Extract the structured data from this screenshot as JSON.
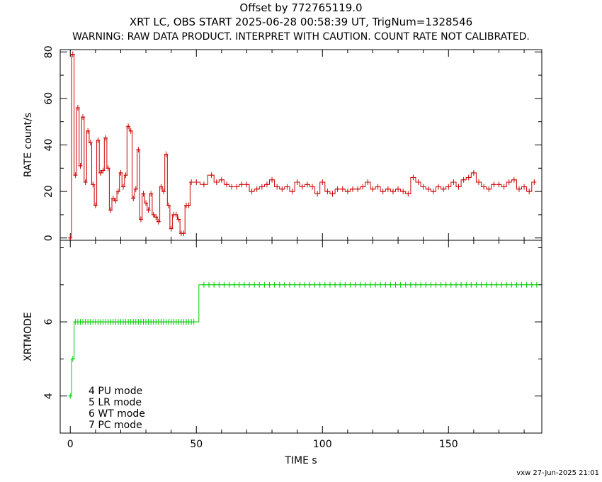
{
  "titles": {
    "line1": "Offset by 772765119.0",
    "line2": "XRT LC, OBS START 2025-06-28 00:58:39 UT, TrigNum=1328546",
    "line3": "WARNING: RAW DATA PRODUCT. INTERPRET WITH CAUTION. COUNT RATE NOT CALIBRATED."
  },
  "footer": "vxw 27-Jun-2025 21:01",
  "colors": {
    "rate": "#cc0000",
    "mode": "#00cc00",
    "axes": "#000000"
  },
  "chart_data": [
    {
      "type": "line",
      "ylabel": "RATE  count/s",
      "xlim": [
        -4,
        187
      ],
      "ylim": [
        -1,
        81
      ],
      "yticks": [
        0,
        20,
        40,
        60,
        80
      ],
      "yticklabels": [
        "0",
        "20",
        "40",
        "60",
        "80"
      ],
      "series": [
        {
          "color": "#cc0000",
          "x": [
            0,
            1,
            2,
            3,
            4,
            5,
            6,
            7,
            8,
            9,
            10,
            11,
            12,
            13,
            14,
            15,
            16,
            17,
            18,
            19,
            20,
            21,
            22,
            23,
            24,
            25,
            26,
            27,
            28,
            29,
            30,
            31,
            32,
            33,
            34,
            35,
            36,
            37,
            38,
            39,
            40,
            41,
            42,
            43,
            44,
            45,
            46,
            47,
            48,
            50,
            53,
            56,
            58,
            60,
            62,
            64,
            66,
            68,
            70,
            72,
            74,
            76,
            78,
            80,
            82,
            84,
            86,
            88,
            90,
            92,
            94,
            96,
            98,
            100,
            102,
            104,
            106,
            108,
            110,
            112,
            114,
            116,
            118,
            120,
            122,
            124,
            126,
            128,
            130,
            132,
            134,
            136,
            138,
            140,
            142,
            144,
            146,
            148,
            150,
            152,
            154,
            156,
            158,
            160,
            162,
            164,
            166,
            168,
            170,
            172,
            174,
            176,
            178,
            180,
            182,
            184
          ],
          "y": [
            0,
            79,
            27,
            56,
            31,
            52,
            24,
            46,
            41,
            23,
            14,
            42,
            28,
            29,
            43,
            30,
            12,
            17,
            16,
            20,
            28,
            22,
            27,
            48,
            46,
            17,
            21,
            38,
            8,
            19,
            15,
            12,
            19,
            10,
            9,
            7,
            22,
            20,
            36,
            14,
            4,
            10,
            10,
            8,
            2,
            2,
            14,
            14,
            24,
            24,
            23,
            27,
            24,
            25,
            23,
            22,
            22,
            23,
            23,
            20,
            21,
            22,
            23,
            25,
            22,
            21,
            22,
            20,
            24,
            22,
            23,
            22,
            19,
            24,
            20,
            19,
            21,
            21,
            20,
            21,
            21,
            22,
            24,
            21,
            22,
            20,
            21,
            20,
            21,
            20,
            19,
            26,
            24,
            22,
            21,
            20,
            22,
            21,
            22,
            24,
            22,
            25,
            26,
            28,
            24,
            22,
            21,
            23,
            23,
            22,
            24,
            25,
            21,
            22,
            20,
            24
          ]
        }
      ]
    },
    {
      "type": "line",
      "ylabel": "XRTMODE",
      "xlabel": "TIME  s",
      "xlim": [
        -4,
        187
      ],
      "ylim": [
        3,
        8.2
      ],
      "xticks": [
        0,
        50,
        100,
        150
      ],
      "xticklabels": [
        "0",
        "50",
        "100",
        "150"
      ],
      "yticks": [
        4,
        6
      ],
      "yticklabels": [
        "4",
        "6"
      ],
      "legend": [
        "4 PU mode",
        "5 LR mode",
        "6 WT mode",
        "7 PC mode"
      ],
      "series": [
        {
          "color": "#00cc00",
          "x": [
            0,
            1,
            2,
            3,
            4,
            5,
            6,
            7,
            8,
            9,
            10,
            11,
            12,
            13,
            14,
            15,
            16,
            17,
            18,
            19,
            20,
            21,
            22,
            23,
            24,
            25,
            26,
            27,
            28,
            29,
            30,
            31,
            32,
            33,
            34,
            35,
            36,
            37,
            38,
            39,
            40,
            41,
            42,
            43,
            44,
            45,
            46,
            47,
            48,
            49,
            53,
            55,
            57,
            59,
            61,
            63,
            65,
            67,
            69,
            71,
            73,
            75,
            77,
            79,
            81,
            83,
            85,
            87,
            89,
            91,
            93,
            95,
            97,
            99,
            101,
            103,
            105,
            107,
            109,
            111,
            113,
            115,
            117,
            119,
            121,
            123,
            125,
            127,
            129,
            131,
            133,
            135,
            137,
            139,
            141,
            143,
            145,
            147,
            149,
            151,
            153,
            155,
            157,
            159,
            161,
            163,
            165,
            167,
            169,
            171,
            173,
            175,
            177,
            179,
            181,
            183,
            185
          ],
          "y": [
            4,
            5,
            6,
            6,
            6,
            6,
            6,
            6,
            6,
            6,
            6,
            6,
            6,
            6,
            6,
            6,
            6,
            6,
            6,
            6,
            6,
            6,
            6,
            6,
            6,
            6,
            6,
            6,
            6,
            6,
            6,
            6,
            6,
            6,
            6,
            6,
            6,
            6,
            6,
            6,
            6,
            6,
            6,
            6,
            6,
            6,
            6,
            6,
            6,
            6,
            7,
            7,
            7,
            7,
            7,
            7,
            7,
            7,
            7,
            7,
            7,
            7,
            7,
            7,
            7,
            7,
            7,
            7,
            7,
            7,
            7,
            7,
            7,
            7,
            7,
            7,
            7,
            7,
            7,
            7,
            7,
            7,
            7,
            7,
            7,
            7,
            7,
            7,
            7,
            7,
            7,
            7,
            7,
            7,
            7,
            7,
            7,
            7,
            7,
            7,
            7,
            7,
            7,
            7,
            7,
            7,
            7,
            7,
            7,
            7,
            7,
            7,
            7,
            7,
            7,
            7,
            7
          ]
        }
      ]
    }
  ]
}
